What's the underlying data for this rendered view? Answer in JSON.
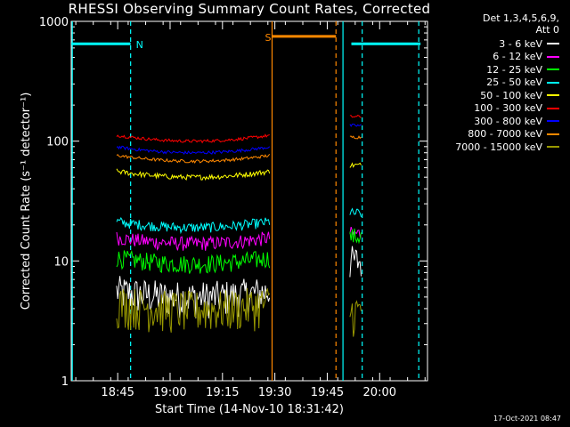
{
  "chart_data": {
    "type": "line",
    "title": "RHESSI Observing Summary Count Rates, Corrected",
    "xlabel": "Start Time (14-Nov-10 18:31:42)",
    "ylabel": "Corrected Count Rate (s⁻¹ detector⁻¹)",
    "yscale": "log",
    "ylim": [
      1,
      1000
    ],
    "xlim_minutes": [
      0,
      102
    ],
    "x_ticks": [
      {
        "label": "18:45",
        "min": 13.3
      },
      {
        "label": "19:00",
        "min": 28.3
      },
      {
        "label": "19:15",
        "min": 43.3
      },
      {
        "label": "19:30",
        "min": 58.3
      },
      {
        "label": "19:45",
        "min": 73.3
      },
      {
        "label": "20:00",
        "min": 88.3
      }
    ],
    "y_ticks": [
      {
        "label": "1",
        "v": 1
      },
      {
        "label": "10",
        "v": 10
      },
      {
        "label": "100",
        "v": 100
      },
      {
        "label": "1000",
        "v": 1000
      }
    ],
    "legend_header": [
      "Det 1,3,4,5,6,9,",
      "Att 0"
    ],
    "series": [
      {
        "name": "3 - 6 keV",
        "color": "#ffffff",
        "seg1": 5.0,
        "seg2": 10.0,
        "noise": 0.35
      },
      {
        "name": "6 - 12 keV",
        "color": "#ff00ff",
        "seg1": 14.0,
        "seg2": 17.0,
        "noise": 0.14
      },
      {
        "name": "12 - 25 keV",
        "color": "#00ff00",
        "seg1": 9.5,
        "seg2": 16.0,
        "noise": 0.18
      },
      {
        "name": "25 - 50 keV",
        "color": "#00ffff",
        "seg1": 19.0,
        "seg2": 25.0,
        "noise": 0.1
      },
      {
        "name": "50 - 100 keV",
        "color": "#ffff00",
        "seg1": 50.0,
        "seg2": 63.0,
        "noise": 0.05
      },
      {
        "name": "100 - 300 keV",
        "color": "#ff0000",
        "seg1": 100.0,
        "seg2": 160.0,
        "noise": 0.03
      },
      {
        "name": "300 - 800 keV",
        "color": "#0000ff",
        "seg1": 80.0,
        "seg2": 135.0,
        "noise": 0.03
      },
      {
        "name": "800 - 7000 keV",
        "color": "#ff8800",
        "seg1": 68.0,
        "seg2": 108.0,
        "noise": 0.03
      },
      {
        "name": "7000 - 15000 keV",
        "color": "#999900",
        "seg1": 4.0,
        "seg2": 3.8,
        "noise": 0.4
      }
    ],
    "segments": [
      {
        "start_min": 13.0,
        "end_min": 56.8
      },
      {
        "start_min": 79.8,
        "end_min": 83.0
      }
    ],
    "flags": [
      {
        "label": "N",
        "color": "#00ffff",
        "level": 650,
        "spans": [
          [
            0,
            17.0
          ],
          [
            80.2,
            100.0
          ]
        ]
      },
      {
        "label": "S",
        "color": "#ff8800",
        "level": 750,
        "spans": [
          [
            57.5,
            75.8
          ]
        ]
      }
    ],
    "flag_lines": [
      {
        "min": 0.3,
        "color": "#00ffff",
        "style": "solid"
      },
      {
        "min": 17.0,
        "color": "#00ffff",
        "style": "dashed"
      },
      {
        "min": 57.5,
        "color": "#ff8800",
        "style": "solid"
      },
      {
        "min": 75.8,
        "color": "#ff8800",
        "style": "dashed"
      },
      {
        "min": 77.8,
        "color": "#00ffff",
        "style": "solid"
      },
      {
        "min": 83.3,
        "color": "#00ffff",
        "style": "dashed"
      },
      {
        "min": 99.5,
        "color": "#00ffff",
        "style": "dashed"
      }
    ]
  },
  "footer": {
    "stamp": "17-Oct-2021 08:47"
  }
}
